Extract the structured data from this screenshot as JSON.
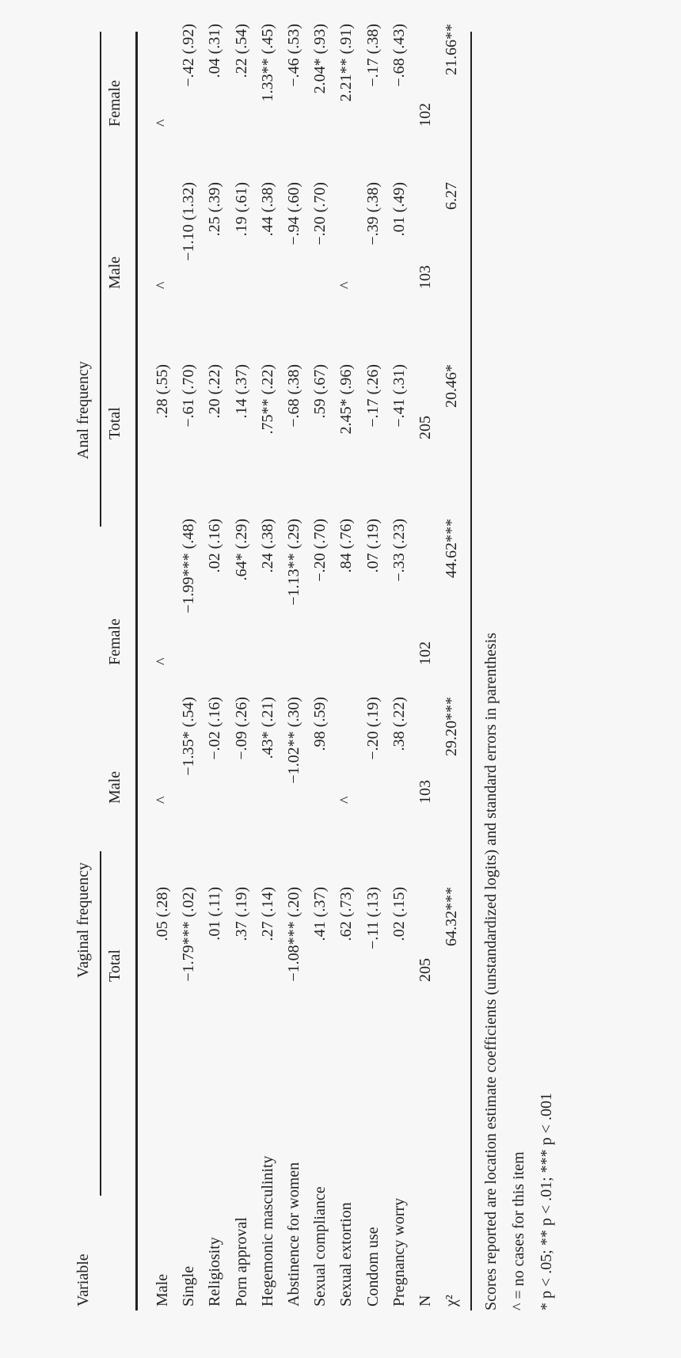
{
  "header": {
    "variable": "Variable",
    "groups": [
      "Vaginal frequency",
      "Anal frequency"
    ],
    "columns": [
      "Total",
      "Male",
      "Female",
      "Total",
      "Male",
      "Female"
    ]
  },
  "rows": [
    [
      "Male",
      ".05 (.28)",
      "^",
      "^",
      ".28 (.55)",
      "^",
      "^"
    ],
    [
      "Single",
      "−1.79*** (.02)",
      "−1.35* (.54)",
      "−1.99*** (.48)",
      "−.61 (.70)",
      "−1.10 (1.32)",
      "−.42 (.92)"
    ],
    [
      "Religiosity",
      ".01 (.11)",
      "−.02 (.16)",
      ".02 (.16)",
      ".20 (.22)",
      ".25 (.39)",
      ".04 (.31)"
    ],
    [
      "Porn approval",
      ".37 (.19)",
      "−.09 (.26)",
      ".64* (.29)",
      ".14 (.37)",
      ".19 (.61)",
      ".22 (.54)"
    ],
    [
      "Hegemonic masculinity",
      ".27 (.14)",
      ".43* (.21)",
      ".24 (.38)",
      ".75** (.22)",
      ".44 (.38)",
      "1.33** (.45)"
    ],
    [
      "Abstinence for women",
      "−1.08*** (.20)",
      "−1.02** (.30)",
      "−1.13** (.29)",
      "−.68 (.38)",
      "−.94 (.60)",
      "−.46 (.53)"
    ],
    [
      "Sexual compliance",
      ".41 (.37)",
      ".98 (.59)",
      "−.20 (.70)",
      ".59 (.67)",
      "−.20 (.70)",
      "2.04* (.93)"
    ],
    [
      "Sexual extortion",
      ".62 (.73)",
      "^",
      ".84 (.76)",
      "2.45* (.96)",
      "^",
      "2.21** (.91)"
    ],
    [
      "Condom use",
      "−.11 (.13)",
      "−.20 (.19)",
      ".07 (.19)",
      "−.17 (.26)",
      "−.39 (.38)",
      "−.17 (.38)"
    ],
    [
      "Pregnancy worry",
      ".02 (.15)",
      ".38 (.22)",
      "−.33 (.23)",
      "−.41 (.31)",
      ".01 (.49)",
      "−.68 (.43)"
    ],
    [
      "N",
      "205",
      "103",
      "102",
      "205",
      "103",
      "102"
    ],
    [
      "χ²",
      "64.32***",
      "29.20***",
      "44.62***",
      "20.46*",
      "6.27",
      "21.66**"
    ]
  ],
  "notes": [
    "Scores reported are location estimate coefficients (unstandardized logits) and standard errors in parenthesis",
    "^ = no cases for this item",
    "* p < .05; ** p < .01; *** p < .001"
  ]
}
